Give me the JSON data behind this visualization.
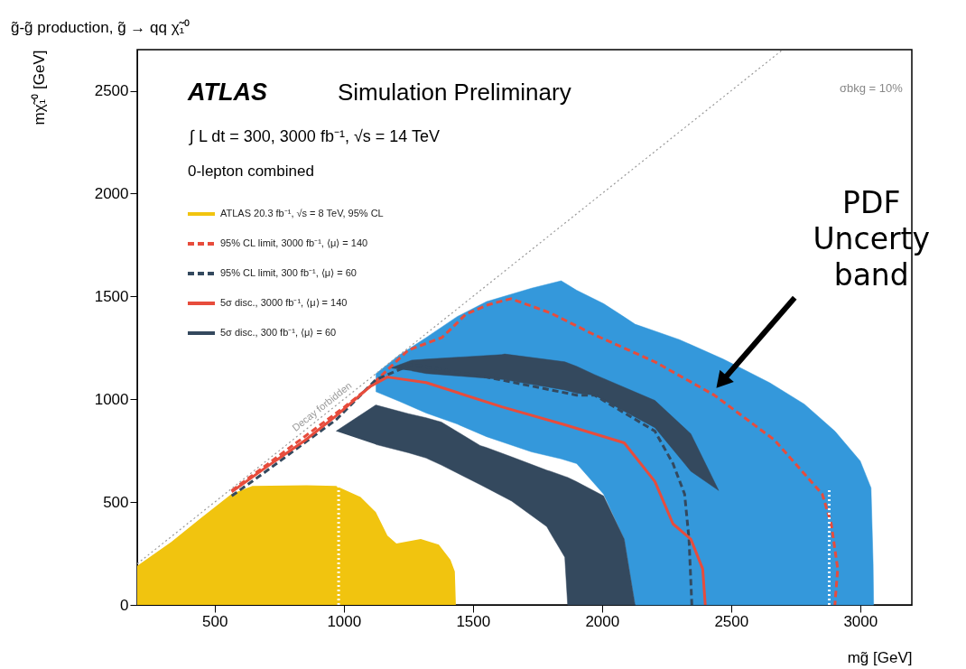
{
  "chart_data": {
    "type": "line",
    "title": "g̃-g̃ production, g̃ → qq χ̃₁⁰",
    "xlabel": "mg̃ [GeV]",
    "ylabel": "mχ̃₁⁰ [GeV]",
    "xlim": [
      200,
      3200
    ],
    "ylim": [
      0,
      2700
    ],
    "xticks": [
      500,
      1000,
      1500,
      2000,
      2500,
      3000
    ],
    "yticks": [
      0,
      500,
      1000,
      1500,
      2000,
      2500
    ],
    "grid": false,
    "legend": "top left",
    "annotations": [
      "ATLAS",
      "Simulation Preliminary",
      "∫ L dt = 300, 3000 fb⁻¹, √s = 14 TeV",
      "0-lepton combined",
      "σbkg = 10%",
      "Decay forbidden",
      {
        "text": "PDF Uncerty band",
        "x": 2470,
        "y": 1094
      }
    ],
    "series": [
      {
        "name": "ATLAS 20.3 fb⁻¹, √s = 8 TeV, 95% CL",
        "type": "area",
        "color": "#f1c40f",
        "x": [
          200,
          332,
          448,
          566,
          646,
          856,
          970,
          1065,
          1124,
          1169,
          1204,
          1298,
          1368,
          1413,
          1430,
          1434
        ],
        "values": [
          190,
          306,
          424,
          540,
          578,
          582,
          578,
          525,
          451,
          337,
          298,
          320,
          293,
          219,
          162,
          0
        ]
      },
      {
        "name": "95% CL limit, 3000 fb⁻¹, ⟨μ⟩ = 140",
        "line_style": "dashed",
        "color": "#e74c3c",
        "x": [
          566,
          700,
          850,
          1000,
          1100,
          1200,
          1250,
          1380,
          1438,
          1473,
          1560,
          1647,
          1800,
          1971,
          2205,
          2435,
          2669,
          2853,
          2888,
          2913,
          2902
        ],
        "values": [
          556,
          680,
          820,
          960,
          1060,
          1180,
          1239,
          1300,
          1370,
          1414,
          1460,
          1489,
          1420,
          1313,
          1182,
          1020,
          801,
          539,
          394,
          175,
          0
        ]
      },
      {
        "name": "95% CL limit, 300 fb⁻¹, ⟨μ⟩ = 60",
        "line_style": "dashed",
        "color": "#34495e",
        "x": [
          566,
          692,
          850,
          970,
          1124,
          1263,
          1553,
          1902,
          1971,
          2205,
          2275,
          2320,
          2337,
          2348
        ],
        "values": [
          530,
          643,
          790,
          900,
          1095,
          1169,
          1108,
          1020,
          1020,
          845,
          687,
          539,
          320,
          0
        ]
      },
      {
        "name": "5σ disc., 3000 fb⁻¹, ⟨μ⟩ = 140",
        "line_style": "solid",
        "color": "#e74c3c",
        "x": [
          566,
          700,
          850,
          970,
          1100,
          1169,
          1319,
          1612,
          1856,
          2086,
          2205,
          2275,
          2344,
          2390,
          2400
        ],
        "values": [
          550,
          670,
          800,
          919,
          1060,
          1108,
          1081,
          963,
          876,
          788,
          600,
          394,
          320,
          175,
          0
        ]
      },
      {
        "type": "area",
        "color": "#3498db",
        "x": [
          1124,
          1215,
          1319,
          1438,
          1553,
          1727,
          1842,
          1902,
          2006,
          2086,
          2128,
          2300,
          2470,
          2650,
          2784,
          2902,
          3000,
          3042,
          3050,
          3052,
          2128,
          2086,
          2006,
          1902,
          1842,
          1727,
          1553,
          1438,
          1319,
          1215,
          1124
        ],
        "values": [
          1124,
          1215,
          1300,
          1401,
          1475,
          1540,
          1576,
          1530,
          1465,
          1400,
          1365,
          1290,
          1195,
          1080,
          976,
          845,
          700,
          569,
          200,
          0,
          0,
          320,
          539,
          687,
          710,
          744,
          818,
          880,
          933,
          990,
          1037
        ]
      },
      {
        "name": "5σ disc., 300 fb⁻¹, ⟨μ⟩ = 60",
        "type": "area",
        "color": "#34495e",
        "x": [
          970,
          1124,
          1250,
          1319,
          1378,
          1528,
          1553,
          1650,
          1786,
          1800,
          1856,
          1867,
          1900,
          2006,
          2086,
          2128,
          1867,
          1856,
          1800,
          1786,
          1650,
          1553,
          1528,
          1378,
          1319,
          1250,
          1124
        ],
        "values": [
          845,
          972,
          930,
          910,
          889,
          775,
          765,
          720,
          655,
          650,
          625,
          620,
          600,
          530,
          320,
          0,
          0,
          232,
          350,
          381,
          505,
          569,
          585,
          680,
          714,
          740,
          780
        ]
      },
      {
        "type": "area",
        "color": "#34495e",
        "x": [
          1180,
          1263,
          1319,
          1612,
          1623,
          1856,
          1902,
          1971,
          2205,
          2320,
          2344,
          2452,
          2344,
          2320,
          2205,
          1971,
          1902,
          1856,
          1623,
          1612,
          1319,
          1263
        ],
        "values": [
          1151,
          1190,
          1195,
          1217,
          1220,
          1182,
          1160,
          1120,
          994,
          860,
          832,
          556,
          650,
          687,
          862,
          1020,
          1030,
          1045,
          1095,
          1097,
          1125,
          1138
        ]
      },
      {
        "line_style": "dotted",
        "color": "#999999",
        "x": [
          200,
          2700
        ],
        "values": [
          200,
          2700
        ]
      },
      {
        "line_style": "dotted",
        "color": "#ffffff",
        "x": [
          980,
          980
        ],
        "values": [
          0,
          580
        ]
      },
      {
        "line_style": "dotted",
        "color": "#ffffff",
        "x": [
          2880,
          2880
        ],
        "values": [
          0,
          560
        ]
      }
    ]
  }
}
